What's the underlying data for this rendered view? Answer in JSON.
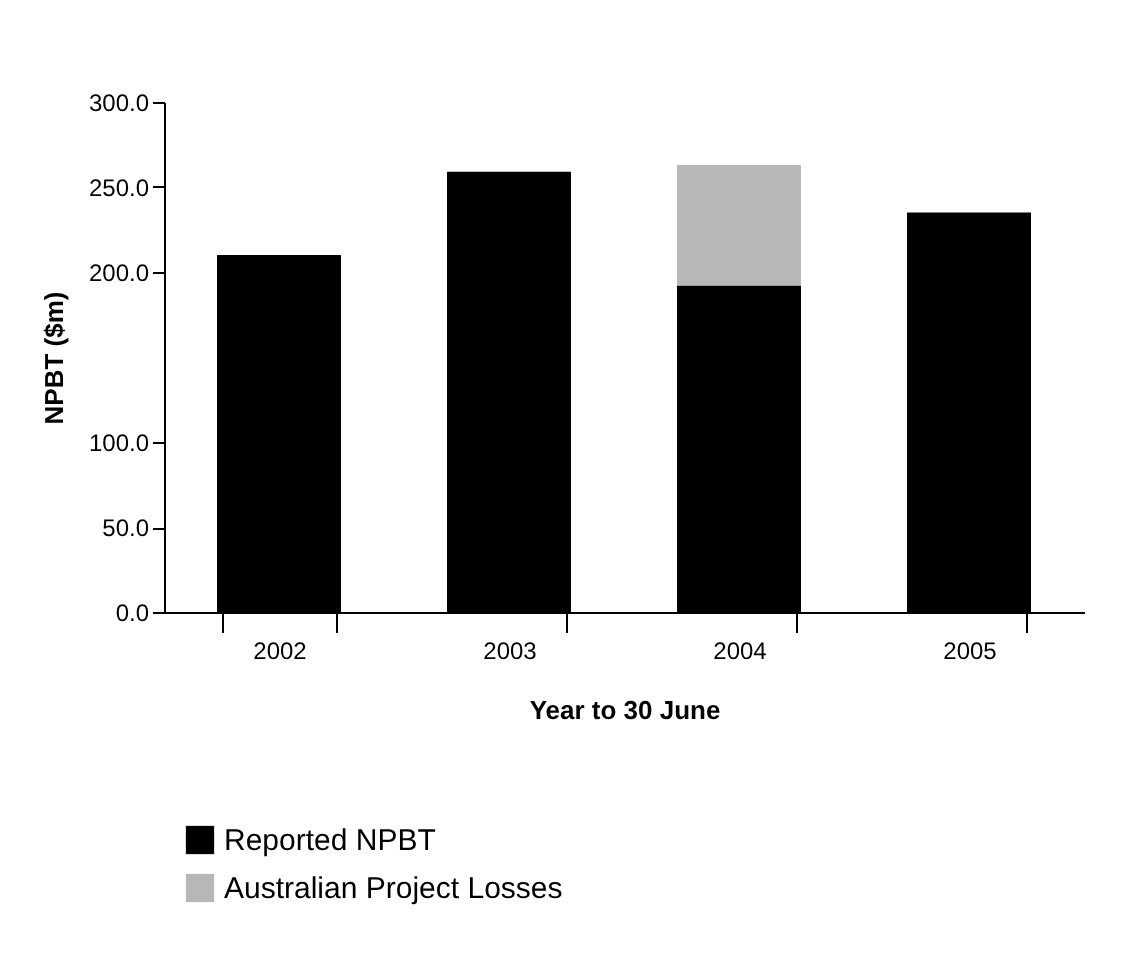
{
  "chart_data": {
    "type": "bar",
    "stacked": true,
    "categories": [
      "2002",
      "2003",
      "2004",
      "2005"
    ],
    "series": [
      {
        "name": "Reported NPBT",
        "color": "#000000",
        "values": [
          210,
          259,
          192,
          235
        ]
      },
      {
        "name": "Australian Project Losses",
        "color": "#b8b8b8",
        "values": [
          null,
          null,
          71,
          null
        ]
      }
    ],
    "xlabel": "Year to 30 June",
    "ylabel": "NPBT ($m)",
    "ylim": [
      0,
      300
    ],
    "yticks": [
      {
        "value": 0,
        "label": "0.0"
      },
      {
        "value": 50,
        "label": "50.0"
      },
      {
        "value": 100,
        "label": "100.0"
      },
      {
        "value": 200,
        "label": "200.0"
      },
      {
        "value": 250,
        "label": "250.0"
      },
      {
        "value": 300,
        "label": "300.0"
      }
    ],
    "grid": false,
    "legend": "bottom"
  }
}
